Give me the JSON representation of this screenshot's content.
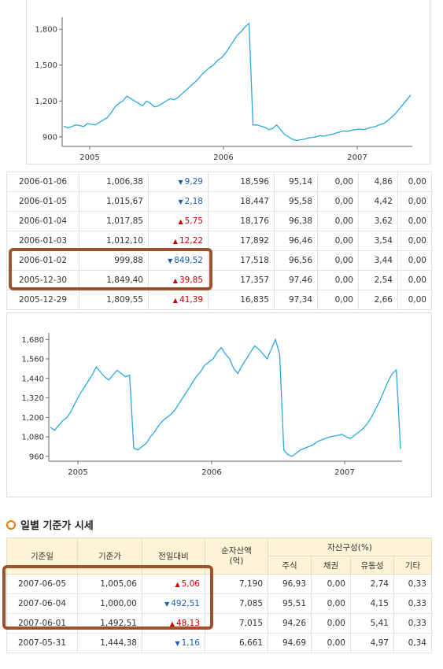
{
  "chart_data": [
    {
      "type": "line",
      "yticks": [
        900,
        1200,
        1500,
        1800
      ],
      "ytick_labels": [
        "900",
        "1,200",
        "1,500",
        "1,800"
      ],
      "xticks": [
        "2005",
        "2006",
        "2007"
      ],
      "ylim": [
        820,
        1900
      ],
      "color": "#2aa9e0",
      "series": [
        {
          "values": [
            990,
            975,
            985,
            1000,
            995,
            985,
            1010,
            1005,
            1000,
            1020,
            1040,
            1060,
            1100,
            1150,
            1180,
            1200,
            1240,
            1220,
            1200,
            1180,
            1160,
            1200,
            1180,
            1150,
            1160,
            1180,
            1200,
            1220,
            1210,
            1230,
            1260,
            1290,
            1320,
            1350,
            1380,
            1420,
            1450,
            1480,
            1500,
            1540,
            1560,
            1600,
            1650,
            1700,
            1750,
            1780,
            1820,
            1849,
            1000,
            999,
            990,
            980,
            960,
            970,
            1000,
            960,
            920,
            900,
            880,
            870,
            875,
            880,
            890,
            895,
            900,
            910,
            905,
            915,
            920,
            930,
            940,
            950,
            945,
            955,
            960,
            965,
            960,
            970,
            980,
            985,
            1000,
            1010,
            1030,
            1060,
            1090,
            1130,
            1170,
            1210,
            1250
          ]
        }
      ]
    },
    {
      "type": "line",
      "yticks": [
        960,
        1080,
        1200,
        1320,
        1440,
        1560,
        1680
      ],
      "ytick_labels": [
        "960",
        "1,080",
        "1,200",
        "1,320",
        "1,440",
        "1,560",
        "1,680"
      ],
      "xticks": [
        "2005",
        "2006",
        "2007"
      ],
      "ylim": [
        930,
        1720
      ],
      "color": "#2aa9e0",
      "series": [
        {
          "values": [
            1140,
            1120,
            1150,
            1180,
            1200,
            1240,
            1290,
            1340,
            1380,
            1420,
            1460,
            1510,
            1480,
            1450,
            1430,
            1460,
            1490,
            1470,
            1450,
            1460,
            1010,
            1000,
            1020,
            1040,
            1080,
            1110,
            1150,
            1180,
            1200,
            1220,
            1250,
            1290,
            1330,
            1370,
            1410,
            1450,
            1480,
            1520,
            1540,
            1560,
            1600,
            1630,
            1590,
            1560,
            1500,
            1470,
            1520,
            1560,
            1600,
            1640,
            1620,
            1590,
            1560,
            1620,
            1680,
            1590,
            1000,
            970,
            960,
            980,
            1000,
            1010,
            1020,
            1030,
            1050,
            1060,
            1070,
            1080,
            1085,
            1090,
            1095,
            1080,
            1070,
            1090,
            1110,
            1130,
            1160,
            1200,
            1250,
            1300,
            1360,
            1420,
            1470,
            1492,
            1005
          ]
        }
      ]
    }
  ],
  "table1": {
    "rows": [
      {
        "date": "2006-01-06",
        "price": "1,006,38",
        "dir": "down",
        "change": "9,29",
        "assets": "18,596",
        "stock": "95,14",
        "bond": "0,00",
        "liquid": "4,86",
        "other": "0,00"
      },
      {
        "date": "2006-01-05",
        "price": "1,015,67",
        "dir": "down",
        "change": "2,18",
        "assets": "18,447",
        "stock": "95,58",
        "bond": "0,00",
        "liquid": "4,42",
        "other": "0,00"
      },
      {
        "date": "2006-01-04",
        "price": "1,017,85",
        "dir": "up",
        "change": "5,75",
        "assets": "18,176",
        "stock": "96,38",
        "bond": "0,00",
        "liquid": "3,62",
        "other": "0,00"
      },
      {
        "date": "2006-01-03",
        "price": "1,012,10",
        "dir": "up",
        "change": "12,22",
        "assets": "17,892",
        "stock": "96,46",
        "bond": "0,00",
        "liquid": "3,54",
        "other": "0,00"
      },
      {
        "date": "2006-01-02",
        "price": "999,88",
        "dir": "down",
        "change": "849,52",
        "assets": "17,518",
        "stock": "96,56",
        "bond": "0,00",
        "liquid": "3,44",
        "other": "0,00"
      },
      {
        "date": "2005-12-30",
        "price": "1,849,40",
        "dir": "up",
        "change": "39,85",
        "assets": "17,357",
        "stock": "97,46",
        "bond": "0,00",
        "liquid": "2,54",
        "other": "0,00"
      },
      {
        "date": "2005-12-29",
        "price": "1,809,55",
        "dir": "up",
        "change": "41,39",
        "assets": "16,835",
        "stock": "97,34",
        "bond": "0,00",
        "liquid": "2,66",
        "other": "0,00"
      }
    ]
  },
  "section_title": "일별 기준가 시세",
  "table2": {
    "headers": {
      "date": "기준일",
      "price": "기준가",
      "change": "전일대비",
      "assets": "순자산액\n(억)",
      "composition": "자산구성(%)",
      "stock": "주식",
      "bond": "채권",
      "liquid": "유동성",
      "other": "기타"
    },
    "rows": [
      {
        "date": "2007-06-05",
        "price": "1,005,06",
        "dir": "up",
        "change": "5,06",
        "assets": "7,190",
        "stock": "96,93",
        "bond": "0,00",
        "liquid": "2,74",
        "other": "0,33"
      },
      {
        "date": "2007-06-04",
        "price": "1,000,00",
        "dir": "down",
        "change": "492,51",
        "assets": "7,085",
        "stock": "95,51",
        "bond": "0,00",
        "liquid": "4,15",
        "other": "0,33"
      },
      {
        "date": "2007-06-01",
        "price": "1,492,51",
        "dir": "up",
        "change": "48,13",
        "assets": "7,015",
        "stock": "94,26",
        "bond": "0,00",
        "liquid": "5,41",
        "other": "0,33"
      },
      {
        "date": "2007-05-31",
        "price": "1,444,38",
        "dir": "down",
        "change": "1,16",
        "assets": "6,661",
        "stock": "94,69",
        "bond": "0,00",
        "liquid": "4,97",
        "other": "0,34"
      }
    ]
  }
}
